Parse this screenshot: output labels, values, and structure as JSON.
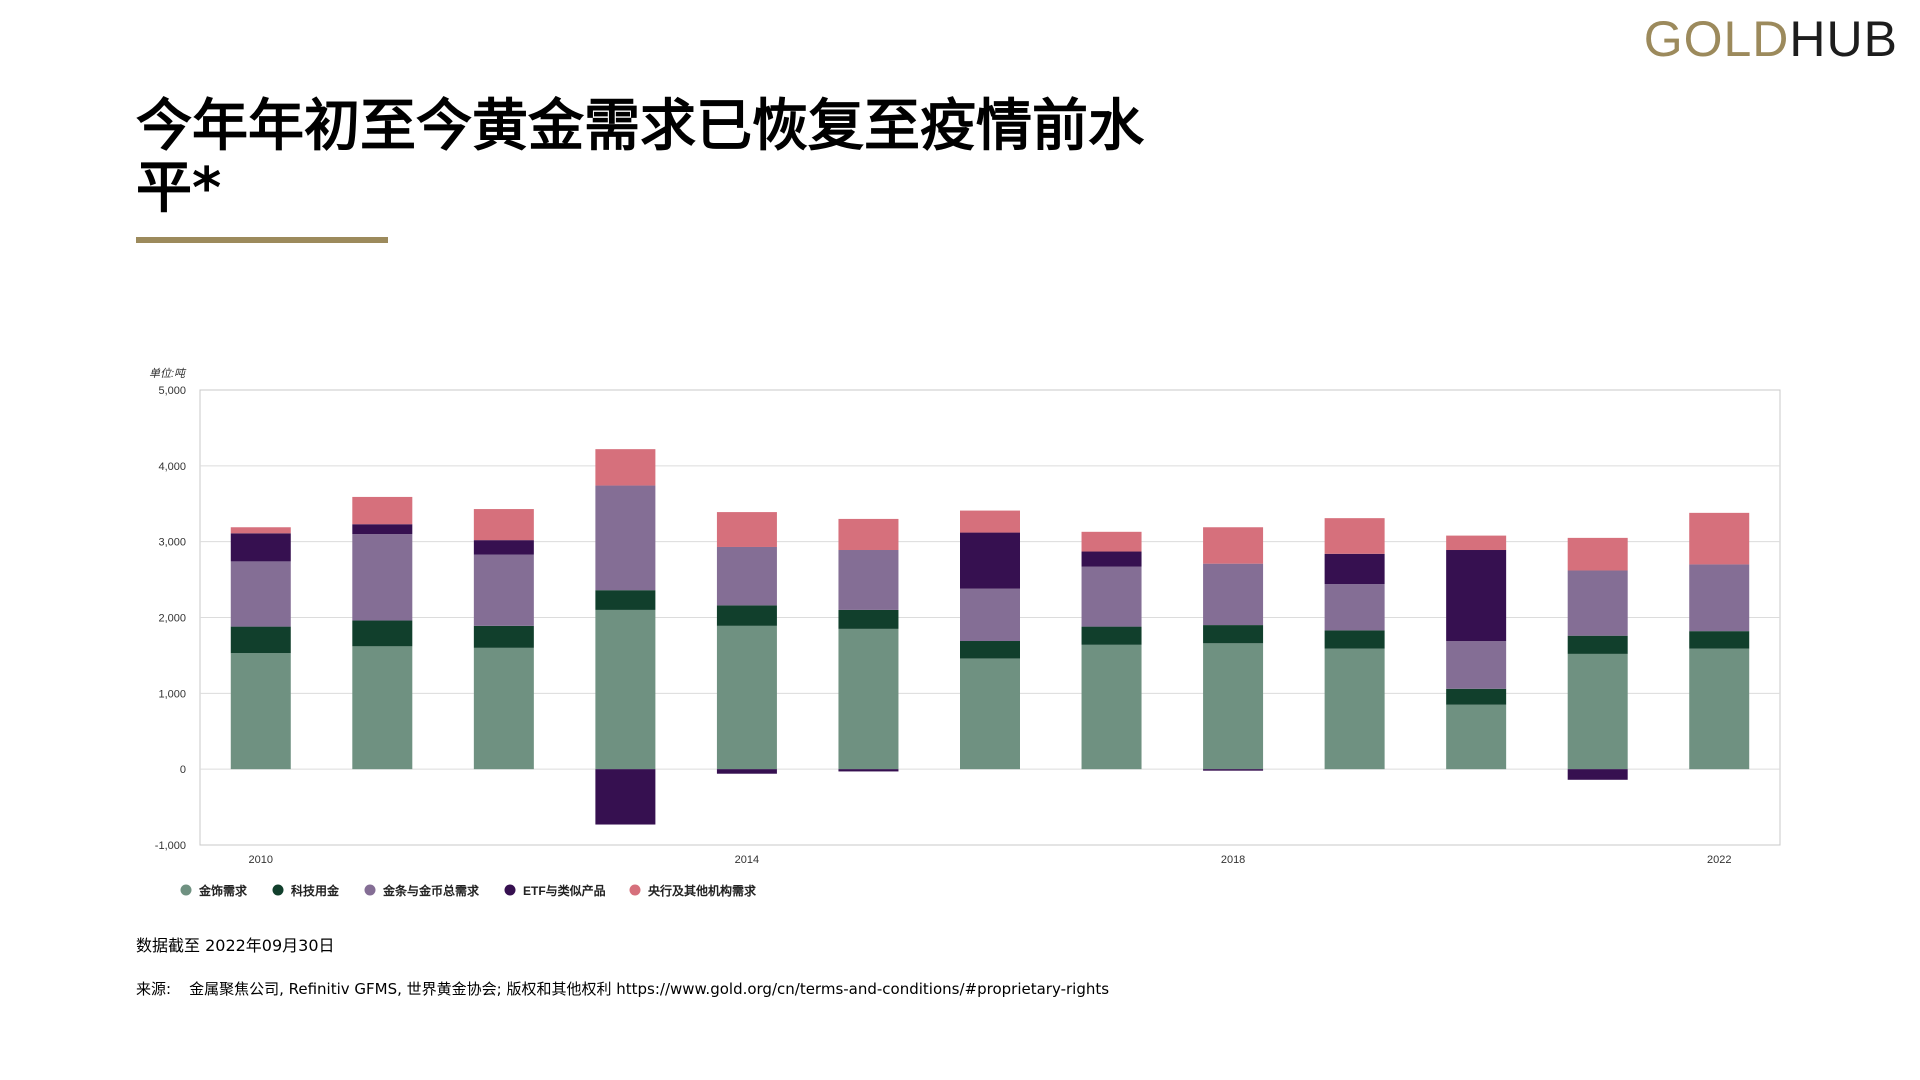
{
  "logo": {
    "gold": "GOLD",
    "hub": "HUB"
  },
  "title": "今年年初至今黄金需求已恢复至疫情前水平*",
  "note": "数据截至 2022年09月30日",
  "source": {
    "label": "来源:",
    "text": "金属聚焦公司, Refinitiv GFMS, 世界黄金协会; 版权和其他权利 https://www.gold.org/cn/terms-and-conditions/#proprietary-rights"
  },
  "colors": {
    "brand": "#9c8a5c",
    "jewellery": "#6f9181",
    "technology": "#113f2c",
    "bar_coin": "#846e95",
    "etf": "#361050",
    "central_bank": "#d6707c"
  },
  "chart_data": {
    "type": "bar",
    "stacked": true,
    "unit_label": "单位:吨",
    "categories": [
      "2010",
      "2011",
      "2012",
      "2013",
      "2014",
      "2015",
      "2016",
      "2017",
      "2018",
      "2019",
      "2020",
      "2021",
      "2022"
    ],
    "x_tick_labels": [
      "2010",
      "2014",
      "2018",
      "2022"
    ],
    "ylim": [
      -1000,
      5000
    ],
    "y_ticks": [
      -1000,
      0,
      1000,
      2000,
      3000,
      4000,
      5000
    ],
    "y_tick_labels": [
      "-1,000",
      "0",
      "1,000",
      "2,000",
      "3,000",
      "4,000",
      "5,000"
    ],
    "grid": true,
    "legend_position": "bottom-left",
    "series": [
      {
        "name": "金饰需求",
        "color": "#6f9181",
        "values": [
          1530,
          1620,
          1600,
          2100,
          1890,
          1850,
          1460,
          1640,
          1660,
          1590,
          850,
          1520,
          1590
        ]
      },
      {
        "name": "科技用金",
        "color": "#113f2c",
        "values": [
          350,
          340,
          290,
          260,
          270,
          250,
          230,
          240,
          240,
          240,
          210,
          240,
          230
        ]
      },
      {
        "name": "金条与金币总需求",
        "color": "#846e95",
        "values": [
          860,
          1140,
          940,
          1380,
          770,
          790,
          690,
          790,
          810,
          610,
          630,
          860,
          880
        ]
      },
      {
        "name": "ETF与类似产品",
        "color": "#361050",
        "values": [
          370,
          130,
          190,
          -730,
          -60,
          -30,
          740,
          200,
          -20,
          400,
          1200,
          -140,
          0
        ]
      },
      {
        "name": "央行及其他机构需求",
        "color": "#d6707c",
        "values": [
          80,
          360,
          410,
          480,
          460,
          410,
          290,
          260,
          480,
          470,
          190,
          430,
          680
        ]
      }
    ]
  }
}
